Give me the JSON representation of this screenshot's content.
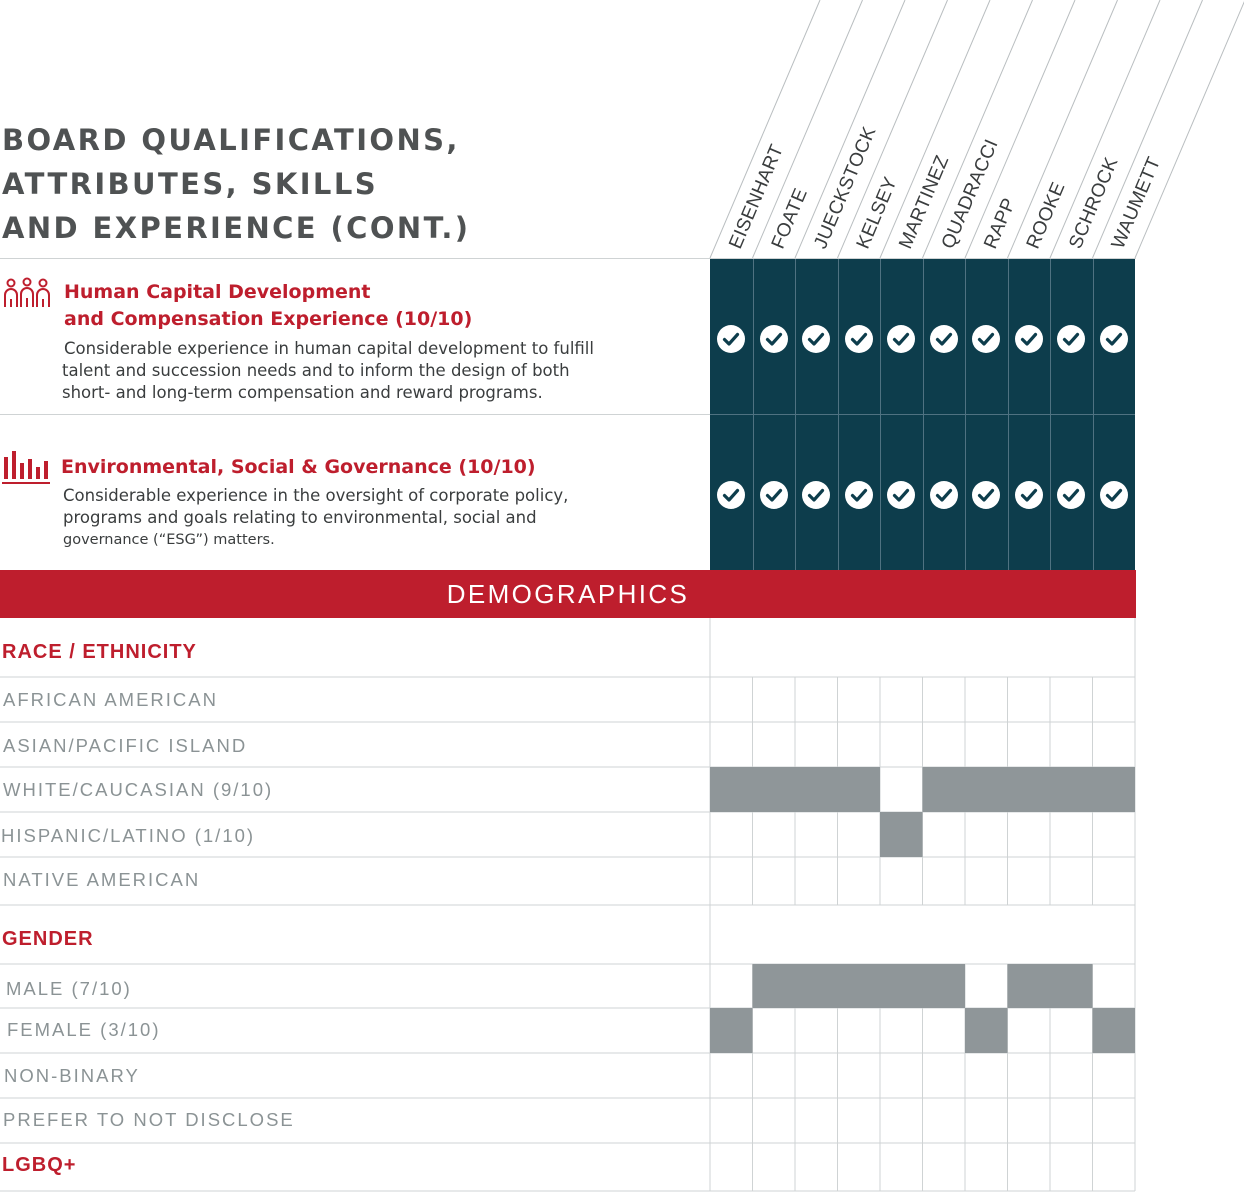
{
  "title": {
    "lines": [
      "BOARD QUALIFICATIONS,",
      "ATTRIBUTES, SKILLS",
      "AND EXPERIENCE (CONT.)"
    ]
  },
  "directors": [
    "EISENHART",
    "FOATE",
    "JUECKSTOCK",
    "KELSEY",
    "MARTINEZ",
    "QUADRACCI",
    "RAPP",
    "ROOKE",
    "SCHROCK",
    "WAUMETT"
  ],
  "qualifications": [
    {
      "icon": "people-group-icon",
      "title_lines": [
        "Human Capital Development",
        "and Compensation Experience (10/10)"
      ],
      "description_lines": [
        "Considerable experience in human capital development to fulfill",
        "talent and succession needs and to inform the design of both",
        "short- and long-term compensation and reward programs."
      ],
      "checks": [
        true,
        true,
        true,
        true,
        true,
        true,
        true,
        true,
        true,
        true
      ]
    },
    {
      "icon": "bar-chart-icon",
      "title_lines": [
        "Environmental, Social & Governance (10/10)"
      ],
      "description_lines": [
        "Considerable experience in the oversight of corporate policy,",
        "programs and goals relating to environmental, social and",
        "governance (“ESG”) matters."
      ],
      "checks": [
        true,
        true,
        true,
        true,
        true,
        true,
        true,
        true,
        true,
        true
      ]
    }
  ],
  "demographics": {
    "heading": "DEMOGRAPHICS",
    "race": {
      "label": "RACE / ETHNICITY",
      "rows": [
        {
          "label": "AFRICAN AMERICAN",
          "cells": [
            0,
            0,
            0,
            0,
            0,
            0,
            0,
            0,
            0,
            0
          ]
        },
        {
          "label": "ASIAN/PACIFIC ISLAND",
          "cells": [
            0,
            0,
            0,
            0,
            0,
            0,
            0,
            0,
            0,
            0
          ]
        },
        {
          "label": "WHITE/CAUCASIAN (9/10)",
          "cells": [
            1,
            1,
            1,
            1,
            0,
            1,
            1,
            1,
            1,
            1
          ]
        },
        {
          "label": "HISPANIC/LATINO (1/10)",
          "cells": [
            0,
            0,
            0,
            0,
            1,
            0,
            0,
            0,
            0,
            0
          ]
        },
        {
          "label": "NATIVE AMERICAN",
          "cells": [
            0,
            0,
            0,
            0,
            0,
            0,
            0,
            0,
            0,
            0
          ]
        }
      ]
    },
    "gender": {
      "label": "GENDER",
      "rows": [
        {
          "label": "MALE (7/10)",
          "cells": [
            0,
            1,
            1,
            1,
            1,
            1,
            0,
            1,
            1,
            0
          ]
        },
        {
          "label": "FEMALE (3/10)",
          "cells": [
            1,
            0,
            0,
            0,
            0,
            0,
            1,
            0,
            0,
            1
          ]
        },
        {
          "label": "NON-BINARY",
          "cells": [
            0,
            0,
            0,
            0,
            0,
            0,
            0,
            0,
            0,
            0
          ]
        },
        {
          "label": "PREFER TO NOT DISCLOSE",
          "cells": [
            0,
            0,
            0,
            0,
            0,
            0,
            0,
            0,
            0,
            0
          ]
        }
      ]
    },
    "lgbq": {
      "label": "LGBQ+",
      "cells": [
        0,
        0,
        0,
        0,
        0,
        0,
        0,
        0,
        0,
        0
      ]
    }
  },
  "colors": {
    "accent_red": "#be1e2d",
    "dark_teal": "#0d3d4c",
    "fill_gray": "#8f9699",
    "grid_line": "#cfd3d4",
    "title_gray": "#4f5253",
    "label_gray": "#8b9395"
  }
}
